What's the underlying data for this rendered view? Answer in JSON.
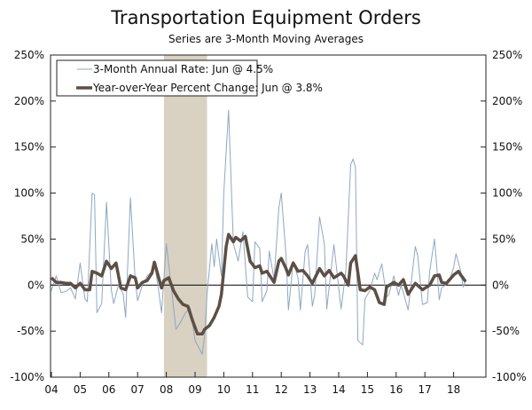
{
  "chart_data": {
    "type": "line",
    "title": "Transportation Equipment Orders",
    "subtitle": "Series are 3-Month Moving Averages",
    "xlabel": "",
    "ylabel": "",
    "ylim": [
      -100,
      250
    ],
    "y_ticks": [
      "-100%",
      "-50%",
      "0%",
      "50%",
      "100%",
      "150%",
      "200%",
      "250%"
    ],
    "y_tick_values": [
      -100,
      -50,
      0,
      50,
      100,
      150,
      200,
      250
    ],
    "x_ticks": [
      "04",
      "05",
      "06",
      "07",
      "08",
      "09",
      "10",
      "11",
      "12",
      "13",
      "14",
      "15",
      "16",
      "17",
      "18"
    ],
    "x_tick_values": [
      "2004-01",
      "2005-01",
      "2006-01",
      "2007-01",
      "2008-01",
      "2009-01",
      "2010-01",
      "2011-01",
      "2012-01",
      "2013-01",
      "2014-01",
      "2015-01",
      "2016-01",
      "2017-01",
      "2018-01"
    ],
    "xlim": [
      "2004-01",
      "2018-08"
    ],
    "legend_position": "top-left",
    "recession_shading": {
      "start": "2007-12",
      "end": "2009-06",
      "color": "#d9d1c2"
    },
    "zero_line": true,
    "series": [
      {
        "name": "3-Month Annual Rate: Jun @ 4.5%",
        "color": "#8ea7c2",
        "points": [
          [
            "2004-01",
            -6
          ],
          [
            "2004-03",
            10
          ],
          [
            "2004-05",
            -8
          ],
          [
            "2004-07",
            -7
          ],
          [
            "2004-09",
            -3
          ],
          [
            "2004-11",
            -15
          ],
          [
            "2005-01",
            24
          ],
          [
            "2005-03",
            -15
          ],
          [
            "2005-04",
            -18
          ],
          [
            "2005-06",
            100
          ],
          [
            "2005-07",
            98
          ],
          [
            "2005-08",
            -30
          ],
          [
            "2005-10",
            -20
          ],
          [
            "2005-12",
            90
          ],
          [
            "2006-02",
            -5
          ],
          [
            "2006-03",
            -20
          ],
          [
            "2006-05",
            0
          ],
          [
            "2006-07",
            -10
          ],
          [
            "2006-08",
            -35
          ],
          [
            "2006-10",
            95
          ],
          [
            "2006-12",
            5
          ],
          [
            "2007-01",
            -17
          ],
          [
            "2007-03",
            0
          ],
          [
            "2007-05",
            10
          ],
          [
            "2007-07",
            15
          ],
          [
            "2007-08",
            25
          ],
          [
            "2007-10",
            -10
          ],
          [
            "2007-11",
            -30
          ],
          [
            "2008-01",
            45
          ],
          [
            "2008-03",
            0
          ],
          [
            "2008-05",
            -48
          ],
          [
            "2008-07",
            -40
          ],
          [
            "2008-09",
            -30
          ],
          [
            "2008-11",
            -25
          ],
          [
            "2009-01",
            -60
          ],
          [
            "2009-03",
            -70
          ],
          [
            "2009-04",
            -75
          ],
          [
            "2009-05",
            -55
          ],
          [
            "2009-06",
            -10
          ],
          [
            "2009-08",
            45
          ],
          [
            "2009-09",
            20
          ],
          [
            "2009-10",
            50
          ],
          [
            "2009-12",
            10
          ],
          [
            "2010-01",
            100
          ],
          [
            "2010-03",
            190
          ],
          [
            "2010-05",
            45
          ],
          [
            "2010-07",
            26
          ],
          [
            "2010-09",
            58
          ],
          [
            "2010-11",
            -13
          ],
          [
            "2011-01",
            -18
          ],
          [
            "2011-02",
            47
          ],
          [
            "2011-04",
            40
          ],
          [
            "2011-05",
            -18
          ],
          [
            "2011-07",
            -6
          ],
          [
            "2011-08",
            37
          ],
          [
            "2011-10",
            6
          ],
          [
            "2011-12",
            84
          ],
          [
            "2012-01",
            100
          ],
          [
            "2012-03",
            32
          ],
          [
            "2012-04",
            -27
          ],
          [
            "2012-06",
            26
          ],
          [
            "2012-08",
            8
          ],
          [
            "2012-09",
            -27
          ],
          [
            "2012-11",
            37
          ],
          [
            "2012-12",
            44
          ],
          [
            "2013-02",
            -23
          ],
          [
            "2013-03",
            -10
          ],
          [
            "2013-05",
            74
          ],
          [
            "2013-07",
            45
          ],
          [
            "2013-08",
            -26
          ],
          [
            "2013-11",
            44
          ],
          [
            "2014-02",
            -26
          ],
          [
            "2014-04",
            16
          ],
          [
            "2014-06",
            131
          ],
          [
            "2014-07",
            137
          ],
          [
            "2014-08",
            128
          ],
          [
            "2014-09",
            -60
          ],
          [
            "2014-11",
            -65
          ],
          [
            "2014-12",
            -15
          ],
          [
            "2015-02",
            -6
          ],
          [
            "2015-04",
            13
          ],
          [
            "2015-05",
            6
          ],
          [
            "2015-07",
            23
          ],
          [
            "2015-09",
            -13
          ],
          [
            "2015-10",
            -10
          ],
          [
            "2015-12",
            10
          ],
          [
            "2016-02",
            -11
          ],
          [
            "2016-03",
            0
          ],
          [
            "2016-04",
            -8
          ],
          [
            "2016-06",
            -27
          ],
          [
            "2016-09",
            42
          ],
          [
            "2016-10",
            32
          ],
          [
            "2016-12",
            -21
          ],
          [
            "2017-02",
            -19
          ],
          [
            "2017-03",
            15
          ],
          [
            "2017-05",
            50
          ],
          [
            "2017-06",
            19
          ],
          [
            "2017-07",
            -16
          ],
          [
            "2017-08",
            -3
          ],
          [
            "2017-11",
            3
          ],
          [
            "2018-01",
            19
          ],
          [
            "2018-02",
            34
          ],
          [
            "2018-04",
            15
          ],
          [
            "2018-05",
            -2
          ],
          [
            "2018-06",
            4.5
          ]
        ]
      },
      {
        "name": "Year-over-Year Percent Change: Jun @ 3.8%",
        "color": "#5c4f44",
        "points": [
          [
            "2004-01",
            8
          ],
          [
            "2004-03",
            3
          ],
          [
            "2004-05",
            3
          ],
          [
            "2004-07",
            2
          ],
          [
            "2004-09",
            2
          ],
          [
            "2004-11",
            -3
          ],
          [
            "2005-01",
            2
          ],
          [
            "2005-03",
            -5
          ],
          [
            "2005-05",
            -5
          ],
          [
            "2005-06",
            15
          ],
          [
            "2005-08",
            13
          ],
          [
            "2005-10",
            10
          ],
          [
            "2005-12",
            26
          ],
          [
            "2006-02",
            18
          ],
          [
            "2006-04",
            24
          ],
          [
            "2006-06",
            -3
          ],
          [
            "2006-08",
            -5
          ],
          [
            "2006-10",
            10
          ],
          [
            "2006-12",
            8
          ],
          [
            "2007-01",
            -3
          ],
          [
            "2007-03",
            3
          ],
          [
            "2007-05",
            5
          ],
          [
            "2007-07",
            13
          ],
          [
            "2007-08",
            25
          ],
          [
            "2007-11",
            -3
          ],
          [
            "2007-12",
            5
          ],
          [
            "2008-02",
            8
          ],
          [
            "2008-04",
            -6
          ],
          [
            "2008-06",
            -15
          ],
          [
            "2008-08",
            -21
          ],
          [
            "2008-10",
            -23
          ],
          [
            "2008-12",
            -39
          ],
          [
            "2009-02",
            -53
          ],
          [
            "2009-04",
            -53
          ],
          [
            "2009-05",
            -48
          ],
          [
            "2009-07",
            -44
          ],
          [
            "2009-09",
            -35
          ],
          [
            "2009-11",
            -23
          ],
          [
            "2009-12",
            -10
          ],
          [
            "2010-01",
            16
          ],
          [
            "2010-02",
            42
          ],
          [
            "2010-03",
            55
          ],
          [
            "2010-05",
            47
          ],
          [
            "2010-06",
            52
          ],
          [
            "2010-08",
            48
          ],
          [
            "2010-10",
            53
          ],
          [
            "2010-12",
            26
          ],
          [
            "2011-02",
            19
          ],
          [
            "2011-04",
            21
          ],
          [
            "2011-05",
            13
          ],
          [
            "2011-07",
            15
          ],
          [
            "2011-10",
            3
          ],
          [
            "2011-12",
            26
          ],
          [
            "2012-01",
            29
          ],
          [
            "2012-03",
            18
          ],
          [
            "2012-04",
            11
          ],
          [
            "2012-06",
            24
          ],
          [
            "2012-08",
            15
          ],
          [
            "2012-10",
            16
          ],
          [
            "2012-12",
            10
          ],
          [
            "2013-02",
            2
          ],
          [
            "2013-05",
            18
          ],
          [
            "2013-07",
            10
          ],
          [
            "2013-09",
            16
          ],
          [
            "2013-11",
            8
          ],
          [
            "2014-02",
            13
          ],
          [
            "2014-03",
            10
          ],
          [
            "2014-05",
            0
          ],
          [
            "2014-06",
            24
          ],
          [
            "2014-08",
            32
          ],
          [
            "2014-10",
            -5
          ],
          [
            "2014-12",
            -6
          ],
          [
            "2015-02",
            -2
          ],
          [
            "2015-04",
            -5
          ],
          [
            "2015-06",
            -19
          ],
          [
            "2015-08",
            -21
          ],
          [
            "2015-09",
            -2
          ],
          [
            "2015-12",
            3
          ],
          [
            "2016-02",
            0
          ],
          [
            "2016-04",
            6
          ],
          [
            "2016-06",
            -10
          ],
          [
            "2016-09",
            2
          ],
          [
            "2016-12",
            -5
          ],
          [
            "2017-03",
            0
          ],
          [
            "2017-05",
            10
          ],
          [
            "2017-07",
            11
          ],
          [
            "2017-08",
            3
          ],
          [
            "2017-10",
            2
          ],
          [
            "2018-01",
            11
          ],
          [
            "2018-03",
            15
          ],
          [
            "2018-04",
            11
          ],
          [
            "2018-06",
            3.8
          ]
        ]
      }
    ]
  }
}
